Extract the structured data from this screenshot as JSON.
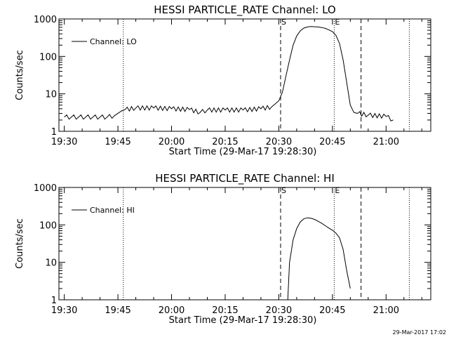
{
  "footer": {
    "timestamp": "29-Mar-2017 17:02"
  },
  "chart_data": [
    {
      "type": "line",
      "title": "HESSI PARTICLE_RATE Channel: LO",
      "xlabel": "Start Time (29-Mar-17 19:28:30)",
      "ylabel": "Counts/sec",
      "yscale": "log",
      "ylim": [
        1,
        1000
      ],
      "xlim": [
        "19:28:30",
        "21:12:30"
      ],
      "x_ticks": [
        "19:30",
        "19:45",
        "20:00",
        "20:15",
        "20:30",
        "20:45",
        "21:00"
      ],
      "y_ticks": [
        "1",
        "10",
        "100",
        "1000"
      ],
      "legend": {
        "entries": [
          "Channel: LO"
        ],
        "placement": "top-left"
      },
      "markers": [
        {
          "label": "",
          "time": "19:46:30",
          "style": "dotted"
        },
        {
          "label": "S",
          "time": "20:30:30",
          "style": "dashed"
        },
        {
          "label": "E",
          "time": "20:45:30",
          "style": "dotted"
        },
        {
          "label": "",
          "time": "20:53:00",
          "style": "dashed"
        },
        {
          "label": "",
          "time": "21:06:30",
          "style": "dotted"
        }
      ],
      "series": [
        {
          "name": "Channel: LO",
          "x": [
            "19:30",
            "19:32",
            "19:34",
            "19:36",
            "19:38",
            "19:40",
            "19:42",
            "19:44",
            "19:46",
            "19:47",
            "19:50",
            "19:55",
            "20:00",
            "20:05",
            "20:08",
            "20:10",
            "20:15",
            "20:20",
            "20:25",
            "20:28",
            "20:30",
            "20:31",
            "20:32",
            "20:33",
            "20:34",
            "20:35",
            "20:36",
            "20:37",
            "20:38",
            "20:39",
            "20:40",
            "20:41",
            "20:42",
            "20:43",
            "20:44",
            "20:45",
            "20:46",
            "20:47",
            "20:48",
            "20:49",
            "20:50",
            "20:51",
            "20:52",
            "20:55",
            "21:00",
            "21:02"
          ],
          "values": [
            2.4,
            2.4,
            2.4,
            2.4,
            2.4,
            2.4,
            2.4,
            2.6,
            3.5,
            3.8,
            4.2,
            4.2,
            4.0,
            3.8,
            3.2,
            3.7,
            3.7,
            3.7,
            4.0,
            4.5,
            6.5,
            11,
            30,
            80,
            200,
            350,
            480,
            570,
            610,
            630,
            620,
            610,
            590,
            560,
            510,
            460,
            360,
            220,
            80,
            20,
            5,
            3.2,
            3.0,
            2.7,
            2.5,
            2.0
          ]
        }
      ]
    },
    {
      "type": "line",
      "title": "HESSI PARTICLE_RATE Channel: HI",
      "xlabel": "Start Time (29-Mar-17 19:28:30)",
      "ylabel": "Counts/sec",
      "yscale": "log",
      "ylim": [
        1,
        1000
      ],
      "xlim": [
        "19:28:30",
        "21:12:30"
      ],
      "x_ticks": [
        "19:30",
        "19:45",
        "20:00",
        "20:15",
        "20:30",
        "20:45",
        "21:00"
      ],
      "y_ticks": [
        "1",
        "10",
        "100",
        "1000"
      ],
      "legend": {
        "entries": [
          "Channel: HI"
        ],
        "placement": "top-left"
      },
      "markers": [
        {
          "label": "",
          "time": "19:46:30",
          "style": "dotted"
        },
        {
          "label": "S",
          "time": "20:30:30",
          "style": "dashed"
        },
        {
          "label": "E",
          "time": "20:45:30",
          "style": "dotted"
        },
        {
          "label": "",
          "time": "20:53:00",
          "style": "dashed"
        },
        {
          "label": "",
          "time": "21:06:30",
          "style": "dotted"
        }
      ],
      "series": [
        {
          "name": "Channel: HI",
          "x": [
            "20:32:30",
            "20:33",
            "20:34",
            "20:35",
            "20:36",
            "20:37",
            "20:38",
            "20:39",
            "20:40",
            "20:41",
            "20:42",
            "20:43",
            "20:44",
            "20:45",
            "20:46",
            "20:47",
            "20:48",
            "20:49",
            "20:50"
          ],
          "values": [
            1.0,
            10,
            40,
            80,
            120,
            145,
            155,
            150,
            140,
            125,
            110,
            95,
            82,
            72,
            60,
            45,
            22,
            6,
            2.0
          ]
        }
      ]
    }
  ]
}
